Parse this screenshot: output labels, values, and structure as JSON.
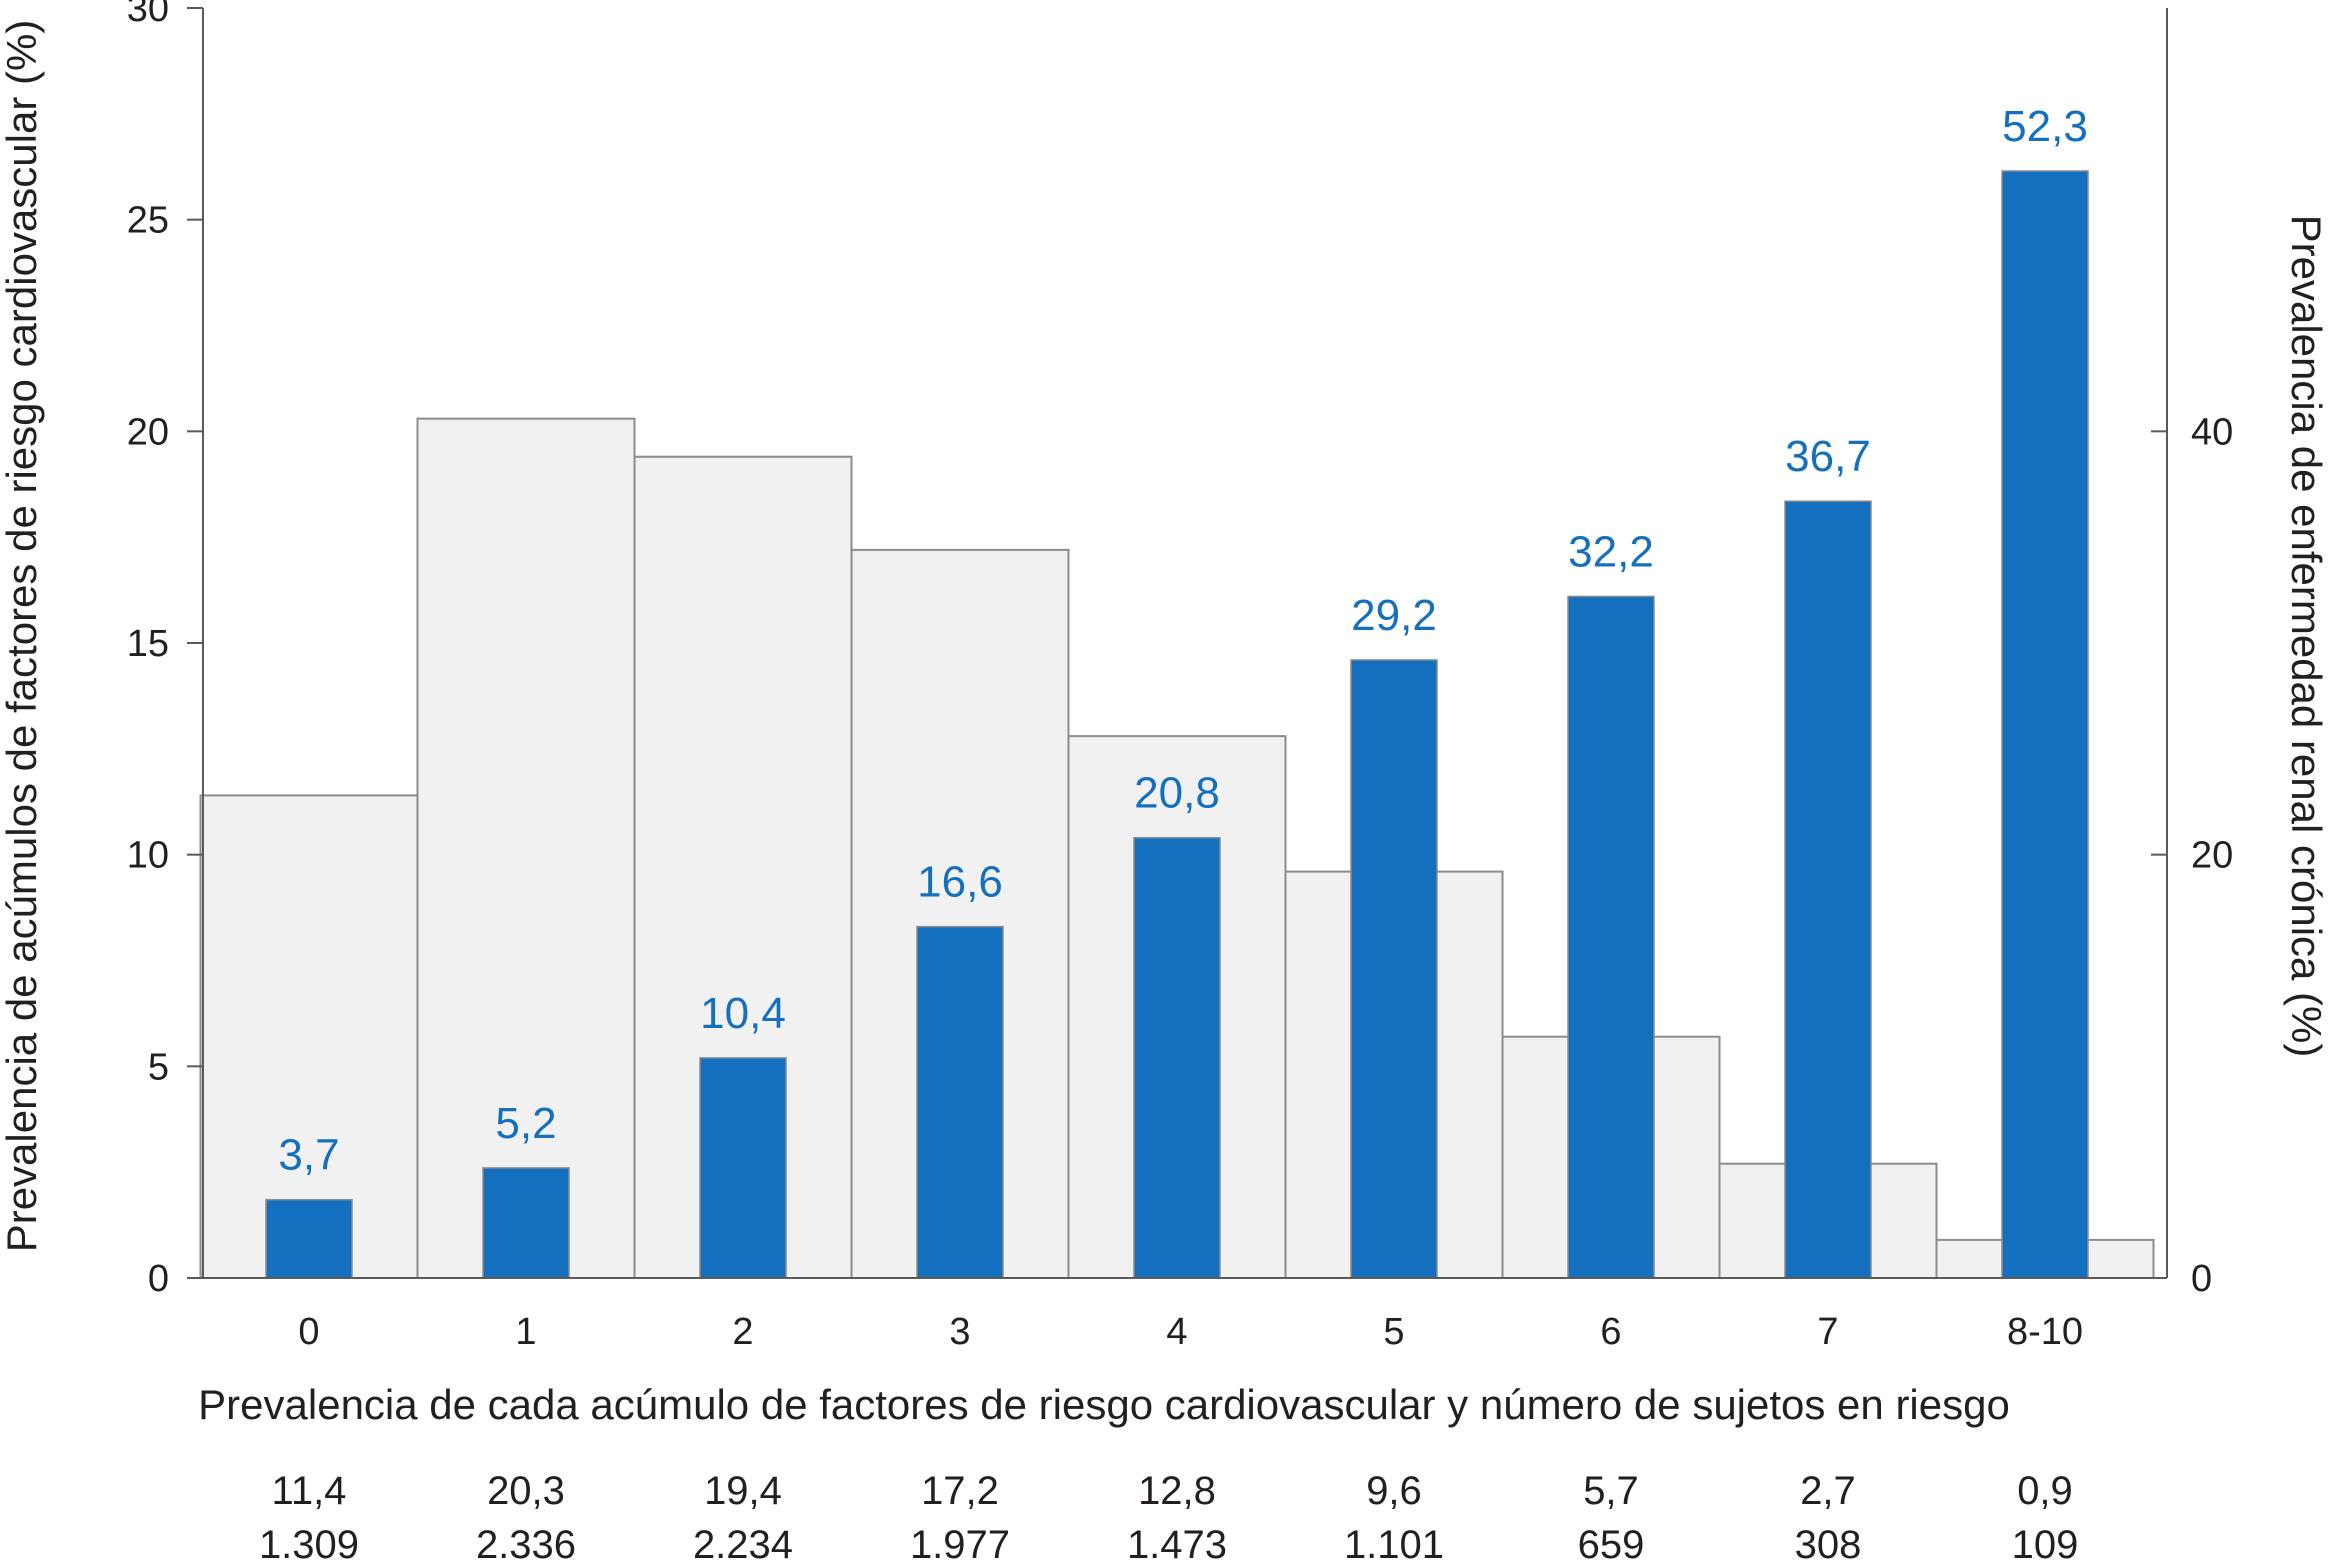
{
  "colors": {
    "axis": "#5a5a5a",
    "text": "#231f20",
    "accent": "#1470bf",
    "background_bar_fill": "#f1f1f1",
    "background_bar_stroke": "#8c8c8c"
  },
  "chart_data": {
    "type": "bar",
    "categories": [
      "0",
      "1",
      "2",
      "3",
      "4",
      "5",
      "6",
      "7",
      "8-10"
    ],
    "xlabel": "Prevalencia de cada acúmulo de factores de riesgo cardiovascular y número de sujetos en riesgo",
    "ylabel_left": "Prevalencia de acúmulos de factores de riesgo cardiovascular (%)",
    "ylabel_right": "Prevalencia de enfermedad renal crónica (%)",
    "ylim_left": [
      0,
      30
    ],
    "yticks_left": [
      0,
      5,
      10,
      15,
      20,
      25,
      30
    ],
    "ylim_right": [
      0,
      60
    ],
    "yticks_right": [
      0,
      20,
      40
    ],
    "grid": false,
    "series": [
      {
        "axis": "left",
        "style": "wide-grey",
        "values": [
          11.4,
          20.3,
          19.4,
          17.2,
          12.8,
          9.6,
          5.7,
          2.7,
          0.9
        ]
      },
      {
        "axis": "right",
        "style": "narrow-blue",
        "values": [
          3.7,
          5.2,
          10.4,
          16.6,
          20.8,
          29.2,
          32.2,
          36.7,
          52.3
        ],
        "data_labels": [
          "3,7",
          "5,2",
          "10,4",
          "16,6",
          "20,8",
          "29,2",
          "32,2",
          "36,7",
          "52,3"
        ]
      }
    ],
    "table": {
      "prevalence_row": [
        "11,4",
        "20,3",
        "19,4",
        "17,2",
        "12,8",
        "9,6",
        "5,7",
        "2,7",
        "0,9"
      ],
      "subjects_row": [
        "1.309",
        "2.336",
        "2.234",
        "1.977",
        "1.473",
        "1.101",
        "659",
        "308",
        "109"
      ]
    }
  }
}
